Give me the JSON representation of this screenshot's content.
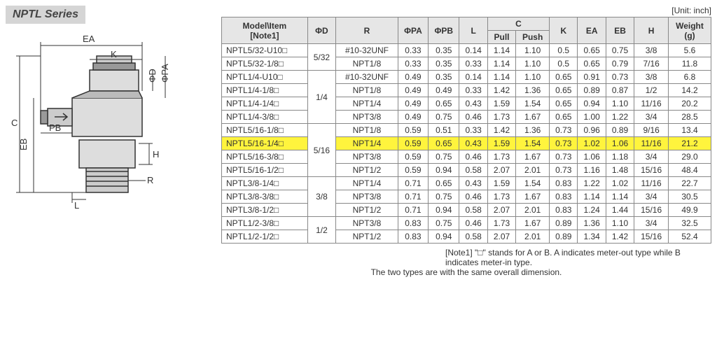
{
  "seriesTitle": "NPTL Series",
  "unitLabel": "[Unit: inch]",
  "headers": {
    "model": "Model\\Item\n[Note1]",
    "phiD": "ΦD",
    "R": "R",
    "phiPA": "ΦPA",
    "phiPB": "ΦPB",
    "L": "L",
    "C": "C",
    "Cpull": "Pull",
    "Cpush": "Push",
    "K": "K",
    "EA": "EA",
    "EB": "EB",
    "H": "H",
    "weight": "Weight\n(g)"
  },
  "diagramLabels": [
    "EA",
    "K",
    "ΦD",
    "ΦPA",
    "PB",
    "C",
    "EB",
    "H",
    "L",
    "R"
  ],
  "rows": [
    {
      "model": "NPTL5/32-U10□",
      "phiD": "5/32",
      "phiDRowspan": 2,
      "R": "#10-32UNF",
      "phiPA": "0.33",
      "phiPB": "0.35",
      "L": "0.14",
      "pull": "1.14",
      "push": "1.10",
      "K": "0.5",
      "EA": "0.65",
      "EB": "0.75",
      "H": "3/8",
      "weight": "5.6",
      "highlight": false
    },
    {
      "model": "NPTL5/32-1/8□",
      "R": "NPT1/8",
      "phiPA": "0.33",
      "phiPB": "0.35",
      "L": "0.33",
      "pull": "1.14",
      "push": "1.10",
      "K": "0.5",
      "EA": "0.65",
      "EB": "0.79",
      "H": "7/16",
      "weight": "11.8",
      "highlight": false
    },
    {
      "model": "NPTL1/4-U10□",
      "phiD": "1/4",
      "phiDRowspan": 4,
      "R": "#10-32UNF",
      "phiPA": "0.49",
      "phiPB": "0.35",
      "L": "0.14",
      "pull": "1.14",
      "push": "1.10",
      "K": "0.65",
      "EA": "0.91",
      "EB": "0.73",
      "H": "3/8",
      "weight": "6.8",
      "highlight": false
    },
    {
      "model": "NPTL1/4-1/8□",
      "R": "NPT1/8",
      "phiPA": "0.49",
      "phiPB": "0.49",
      "L": "0.33",
      "pull": "1.42",
      "push": "1.36",
      "K": "0.65",
      "EA": "0.89",
      "EB": "0.87",
      "H": "1/2",
      "weight": "14.2",
      "highlight": false
    },
    {
      "model": "NPTL1/4-1/4□",
      "R": "NPT1/4",
      "phiPA": "0.49",
      "phiPB": "0.65",
      "L": "0.43",
      "pull": "1.59",
      "push": "1.54",
      "K": "0.65",
      "EA": "0.94",
      "EB": "1.10",
      "H": "11/16",
      "weight": "20.2",
      "highlight": false
    },
    {
      "model": "NPTL1/4-3/8□",
      "R": "NPT3/8",
      "phiPA": "0.49",
      "phiPB": "0.75",
      "L": "0.46",
      "pull": "1.73",
      "push": "1.67",
      "K": "0.65",
      "EA": "1.00",
      "EB": "1.22",
      "H": "3/4",
      "weight": "28.5",
      "highlight": false
    },
    {
      "model": "NPTL5/16-1/8□",
      "phiD": "5/16",
      "phiDRowspan": 4,
      "R": "NPT1/8",
      "phiPA": "0.59",
      "phiPB": "0.51",
      "L": "0.33",
      "pull": "1.42",
      "push": "1.36",
      "K": "0.73",
      "EA": "0.96",
      "EB": "0.89",
      "H": "9/16",
      "weight": "13.4",
      "highlight": false
    },
    {
      "model": "NPTL5/16-1/4□",
      "R": "NPT1/4",
      "phiPA": "0.59",
      "phiPB": "0.65",
      "L": "0.43",
      "pull": "1.59",
      "push": "1.54",
      "K": "0.73",
      "EA": "1.02",
      "EB": "1.06",
      "H": "11/16",
      "weight": "21.2",
      "highlight": true
    },
    {
      "model": "NPTL5/16-3/8□",
      "R": "NPT3/8",
      "phiPA": "0.59",
      "phiPB": "0.75",
      "L": "0.46",
      "pull": "1.73",
      "push": "1.67",
      "K": "0.73",
      "EA": "1.06",
      "EB": "1.18",
      "H": "3/4",
      "weight": "29.0",
      "highlight": false
    },
    {
      "model": "NPTL5/16-1/2□",
      "R": "NPT1/2",
      "phiPA": "0.59",
      "phiPB": "0.94",
      "L": "0.58",
      "pull": "2.07",
      "push": "2.01",
      "K": "0.73",
      "EA": "1.16",
      "EB": "1.48",
      "H": "15/16",
      "weight": "48.4",
      "highlight": false
    },
    {
      "model": "NPTL3/8-1/4□",
      "phiD": "3/8",
      "phiDRowspan": 3,
      "R": "NPT1/4",
      "phiPA": "0.71",
      "phiPB": "0.65",
      "L": "0.43",
      "pull": "1.59",
      "push": "1.54",
      "K": "0.83",
      "EA": "1.22",
      "EB": "1.02",
      "H": "11/16",
      "weight": "22.7",
      "highlight": false
    },
    {
      "model": "NPTL3/8-3/8□",
      "R": "NPT3/8",
      "phiPA": "0.71",
      "phiPB": "0.75",
      "L": "0.46",
      "pull": "1.73",
      "push": "1.67",
      "K": "0.83",
      "EA": "1.14",
      "EB": "1.14",
      "H": "3/4",
      "weight": "30.5",
      "highlight": false
    },
    {
      "model": "NPTL3/8-1/2□",
      "R": "NPT1/2",
      "phiPA": "0.71",
      "phiPB": "0.94",
      "L": "0.58",
      "pull": "2.07",
      "push": "2.01",
      "K": "0.83",
      "EA": "1.24",
      "EB": "1.44",
      "H": "15/16",
      "weight": "49.9",
      "highlight": false
    },
    {
      "model": "NPTL1/2-3/8□",
      "phiD": "1/2",
      "phiDRowspan": 2,
      "R": "NPT3/8",
      "phiPA": "0.83",
      "phiPB": "0.75",
      "L": "0.46",
      "pull": "1.73",
      "push": "1.67",
      "K": "0.89",
      "EA": "1.36",
      "EB": "1.10",
      "H": "3/4",
      "weight": "32.5",
      "highlight": false
    },
    {
      "model": "NPTL1/2-1/2□",
      "R": "NPT1/2",
      "phiPA": "0.83",
      "phiPB": "0.94",
      "L": "0.58",
      "pull": "2.07",
      "push": "2.01",
      "K": "0.89",
      "EA": "1.34",
      "EB": "1.42",
      "H": "15/16",
      "weight": "52.4",
      "highlight": false
    }
  ],
  "footnotes": [
    "[Note1] \"□\" stands for A or B. A indicates meter-out type while B indicates meter-in type.",
    "The two types are with the same overall dimension."
  ],
  "highlightColor": "#fff43d",
  "colors": {
    "headerBg": "#e6e6e6",
    "border": "#888",
    "titleBg": "#d5d5d5"
  }
}
